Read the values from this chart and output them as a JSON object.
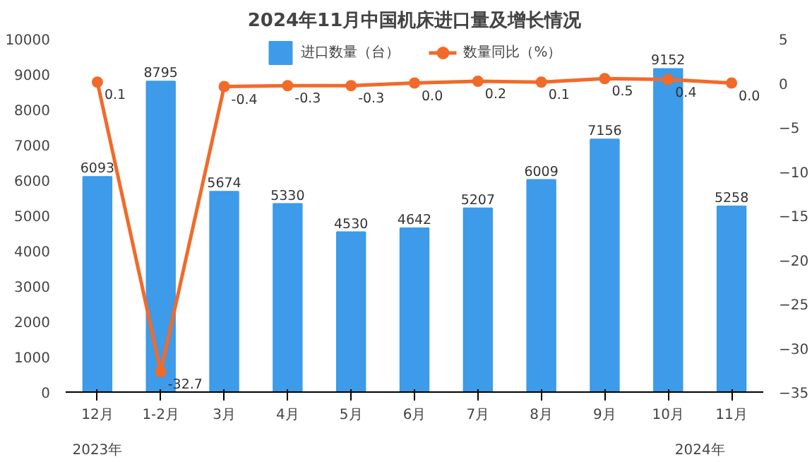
{
  "chart_data": {
    "type": "bar",
    "title": "2024年11月中国机床进口量及增长情况",
    "categories": [
      "12月",
      "1-2月",
      "3月",
      "4月",
      "5月",
      "6月",
      "7月",
      "8月",
      "9月",
      "10月",
      "11月"
    ],
    "series": [
      {
        "name": "进口数量（台）",
        "color": "#3d9be9",
        "values": [
          6093,
          8795,
          5674,
          5330,
          4530,
          4642,
          5207,
          6009,
          7156,
          9152,
          5258
        ],
        "value_labels": [
          "6093",
          "8795",
          "5674",
          "5330",
          "4530",
          "4642",
          "5207",
          "6009",
          "7156",
          "9152",
          "5258"
        ]
      },
      {
        "name": "数量同比（%）",
        "type": "line",
        "axis": "y2",
        "color": "#f26a2a",
        "marker": "circle",
        "values": [
          0.1,
          -32.7,
          -0.4,
          -0.3,
          -0.3,
          0.0,
          0.2,
          0.1,
          0.5,
          0.4,
          0.0
        ],
        "value_labels": [
          "0.1",
          "-32.7",
          "-0.4",
          "-0.3",
          "-0.3",
          "0.0",
          "0.2",
          "0.1",
          "0.5",
          "0.4",
          "0.0"
        ]
      }
    ],
    "ylim": [
      0,
      10000
    ],
    "yticks": [
      0,
      1000,
      2000,
      3000,
      4000,
      5000,
      6000,
      7000,
      8000,
      9000,
      10000
    ],
    "y2lim": [
      -35,
      5
    ],
    "y2ticks": [
      -35,
      -30,
      -25,
      -20,
      -15,
      -10,
      -5,
      0,
      5
    ],
    "legend": "top",
    "grid": false,
    "annotations": [
      "2023年",
      "2024年"
    ]
  }
}
